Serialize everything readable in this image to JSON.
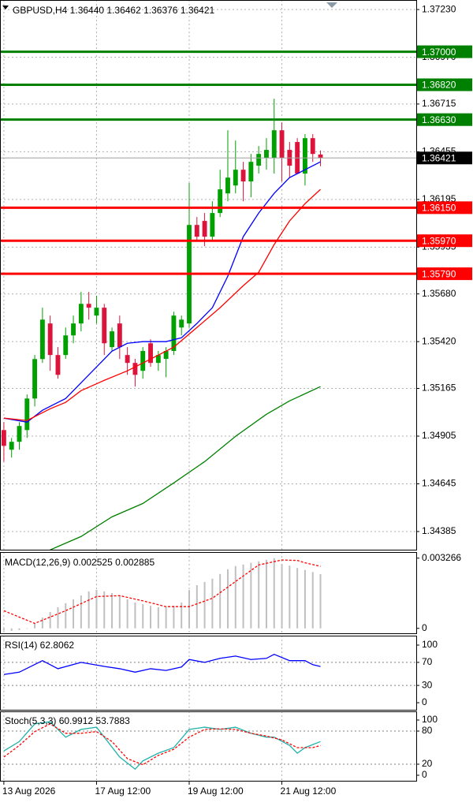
{
  "chart_data": [
    {
      "type": "candlestick",
      "title": "GBPUSD,H4  1.36440 1.36462 1.36376 1.36421",
      "x": [
        0,
        1,
        2,
        3,
        4,
        5,
        6,
        7,
        8,
        9,
        10,
        11,
        12,
        13,
        14,
        15,
        16,
        17,
        18,
        19,
        20,
        21,
        22,
        23,
        24,
        25,
        26,
        27,
        28,
        29,
        30,
        31,
        32,
        33,
        34,
        35,
        36,
        37,
        38,
        39,
        40,
        41
      ],
      "open": [
        1.34938,
        1.34831,
        1.34874,
        1.34938,
        1.3511,
        1.35325,
        1.35519,
        1.35347,
        1.35347,
        1.35454,
        1.35519,
        1.35626,
        1.35562,
        1.35605,
        1.3539,
        1.35519,
        1.35347,
        1.35304,
        1.35261,
        1.35411,
        1.35304,
        1.35326,
        1.35369,
        1.35497,
        1.35519,
        1.36056,
        1.36078,
        1.35992,
        1.36121,
        1.36228,
        1.36271,
        1.36357,
        1.36293,
        1.36379,
        1.36422,
        1.36422,
        1.36572,
        1.36465,
        1.36508,
        1.36336,
        1.36529,
        1.3644
      ],
      "high": [
        1.34981,
        1.34895,
        1.34981,
        1.35132,
        1.35347,
        1.35605,
        1.35562,
        1.3539,
        1.35497,
        1.35562,
        1.35691,
        1.35691,
        1.3567,
        1.35626,
        1.35497,
        1.35562,
        1.3539,
        1.35326,
        1.3539,
        1.35433,
        1.35369,
        1.3539,
        1.35583,
        1.35562,
        1.36284,
        1.36099,
        1.36121,
        1.36185,
        1.36357,
        1.36572,
        1.36516,
        1.364,
        1.36443,
        1.36486,
        1.36529,
        1.36744,
        1.36615,
        1.36508,
        1.36529,
        1.36551,
        1.36551,
        1.36462
      ],
      "low": [
        1.34766,
        1.34788,
        1.34831,
        1.34895,
        1.35067,
        1.35304,
        1.35261,
        1.35218,
        1.35326,
        1.35411,
        1.35476,
        1.3554,
        1.35519,
        1.35347,
        1.35369,
        1.35325,
        1.35239,
        1.35175,
        1.35218,
        1.35283,
        1.35261,
        1.35226,
        1.35347,
        1.35454,
        1.35497,
        1.3597,
        1.3594,
        1.3597,
        1.36099,
        1.36185,
        1.36228,
        1.36185,
        1.36207,
        1.36336,
        1.36357,
        1.36336,
        1.36293,
        1.36314,
        1.36336,
        1.36271,
        1.364,
        1.36376
      ],
      "close": [
        1.34852,
        1.34874,
        1.3496,
        1.3511,
        1.35325,
        1.3554,
        1.35347,
        1.35239,
        1.35454,
        1.35519,
        1.35626,
        1.35605,
        1.35605,
        1.35411,
        1.35476,
        1.3539,
        1.35304,
        1.35239,
        1.35369,
        1.35304,
        1.35347,
        1.35369,
        1.35562,
        1.3554,
        1.36056,
        1.35992,
        1.35992,
        1.36121,
        1.3625,
        1.36314,
        1.36357,
        1.36293,
        1.364,
        1.36443,
        1.36465,
        1.36572,
        1.36422,
        1.36379,
        1.36336,
        1.36529,
        1.36443,
        1.36421
      ],
      "up_color": "#00a000",
      "down_color": "#dc143c",
      "xlim": [
        -0.5,
        53.4
      ],
      "xticks": [
        {
          "value": 0,
          "label": "13 Aug 2026"
        },
        {
          "value": 12,
          "label": "17 Aug 12:00"
        },
        {
          "value": 24,
          "label": "19 Aug 12:00"
        },
        {
          "value": 36,
          "label": "21 Aug 12:00"
        }
      ],
      "ylim": [
        1.34286,
        1.37282
      ],
      "yticks": [
        {
          "value": 1.3723,
          "label": "1.37230"
        },
        {
          "value": 1.3697,
          "label": "1.36970"
        },
        {
          "value": 1.36715,
          "label": "1.36715"
        },
        {
          "value": 1.36455,
          "label": "1.36455"
        },
        {
          "value": 1.36195,
          "label": "1.36195"
        },
        {
          "value": 1.35935,
          "label": "1.35935"
        },
        {
          "value": 1.3568,
          "label": "1.35680"
        },
        {
          "value": 1.3542,
          "label": "1.35420"
        },
        {
          "value": 1.35165,
          "label": "1.35165"
        },
        {
          "value": 1.34905,
          "label": "1.34905"
        },
        {
          "value": 1.34645,
          "label": "1.34645"
        },
        {
          "value": 1.34385,
          "label": "1.34385"
        }
      ],
      "grid": true,
      "series": [
        {
          "color": "#0000ff",
          "x": [
            0,
            3,
            5,
            8,
            10,
            12,
            14,
            16,
            18,
            21,
            23,
            25,
            27,
            29,
            31,
            33,
            35,
            37,
            39,
            41
          ],
          "values": [
            1.35003,
            1.34981,
            1.35046,
            1.3511,
            1.35196,
            1.35282,
            1.35368,
            1.35411,
            1.3542,
            1.3542,
            1.35441,
            1.35519,
            1.35605,
            1.35777,
            1.35992,
            1.36121,
            1.36228,
            1.36314,
            1.36357,
            1.364
          ]
        },
        {
          "color": "#ff0000",
          "x": [
            0,
            3,
            6,
            8,
            10,
            13,
            16,
            19,
            22,
            25,
            28,
            31,
            33,
            35,
            37,
            39,
            41
          ],
          "values": [
            1.35003,
            1.3499,
            1.35054,
            1.35089,
            1.35153,
            1.35209,
            1.35261,
            1.35325,
            1.3539,
            1.35497,
            1.35605,
            1.35725,
            1.35798,
            1.35949,
            1.36078,
            1.36172,
            1.3625
          ]
        },
        {
          "color": "#008000",
          "x": [
            6,
            10,
            14,
            18,
            22,
            26,
            30,
            34,
            37,
            41
          ],
          "values": [
            1.34285,
            1.34358,
            1.34465,
            1.34538,
            1.3465,
            1.34766,
            1.34904,
            1.35024,
            1.35097,
            1.35175
          ]
        }
      ],
      "levels": [
        {
          "value": 1.37,
          "label": "1.37000",
          "color": "#008000"
        },
        {
          "value": 1.3682,
          "label": "1.36820",
          "color": "#008000"
        },
        {
          "value": 1.3663,
          "label": "1.36630",
          "color": "#008000"
        },
        {
          "value": 1.3615,
          "label": "1.36150",
          "color": "#ff0000"
        },
        {
          "value": 1.3597,
          "label": "1.35970",
          "color": "#ff0000"
        },
        {
          "value": 1.3579,
          "label": "1.35790",
          "color": "#ff0000"
        }
      ],
      "last_price": {
        "value": 1.36421,
        "label": "1.36421"
      }
    },
    {
      "type": "macd",
      "title": "MACD(12,26,9) 0.002525 0.002885",
      "x": [
        0,
        1,
        2,
        3,
        4,
        5,
        6,
        7,
        8,
        9,
        10,
        11,
        12,
        13,
        14,
        15,
        16,
        17,
        18,
        19,
        20,
        21,
        22,
        23,
        24,
        25,
        26,
        27,
        28,
        29,
        30,
        31,
        32,
        33,
        34,
        35,
        36,
        37,
        38,
        39,
        40,
        41
      ],
      "values": [
        -0.0001,
        -0.00012,
        -8e-05,
        -2e-05,
        0.00024,
        0.0005,
        0.00076,
        0.00098,
        0.00117,
        0.00135,
        0.00153,
        0.00172,
        0.00179,
        0.00172,
        0.00164,
        0.00153,
        0.00135,
        0.0012,
        0.00113,
        0.00105,
        0.00098,
        0.00098,
        0.00105,
        0.0012,
        0.00179,
        0.00201,
        0.00216,
        0.00231,
        0.00253,
        0.00275,
        0.0029,
        0.00297,
        0.00305,
        0.00312,
        0.00319,
        0.00327,
        0.003,
        0.00292,
        0.00281,
        0.00272,
        0.00262,
        0.002525
      ],
      "color": "#c0c0c0",
      "signal": {
        "color": "#ff0000",
        "dashed": true,
        "x": [
          0,
          4,
          8,
          12,
          15,
          18,
          21,
          24,
          27,
          30,
          33,
          36,
          38,
          39,
          41
        ],
        "values": [
          0.00082,
          0.00023,
          0.00082,
          0.00148,
          0.00152,
          0.00128,
          0.00101,
          0.00101,
          0.0014,
          0.00218,
          0.00295,
          0.00318,
          0.00316,
          0.00305,
          0.002885
        ]
      },
      "ylim": [
        -0.00023,
        0.00355
      ],
      "yticks": [
        0.003266,
        0
      ]
    },
    {
      "type": "line",
      "title": "RSI(14) 62.8062",
      "series": [
        {
          "color": "#0000ff",
          "x": [
            0,
            2,
            5,
            7,
            10,
            13,
            15,
            17,
            19,
            21,
            23,
            24,
            26,
            28,
            30,
            32,
            34,
            35,
            37,
            39,
            40,
            41
          ],
          "values": [
            49,
            53,
            73,
            59,
            70,
            63,
            59,
            53,
            59,
            56,
            62,
            75,
            70,
            77,
            81,
            75,
            77,
            84,
            73,
            73,
            66,
            62.8062
          ]
        }
      ],
      "levels": [
        70,
        30
      ],
      "ylim": [
        -12.3,
        116.4
      ],
      "yticks": [
        100,
        70,
        30,
        0
      ]
    },
    {
      "type": "line",
      "title": "Stoch(5,3,3) 60.9912 53.7883",
      "series": [
        {
          "color": "#20b2aa",
          "x": [
            0,
            2,
            4,
            6,
            8,
            10,
            12,
            13,
            15,
            17,
            18,
            20,
            22,
            24,
            26,
            28,
            30,
            32,
            34,
            35,
            37,
            38,
            39,
            41
          ],
          "values": [
            44,
            61,
            93,
            97,
            69,
            83,
            87,
            69,
            33,
            11,
            26,
            40,
            50,
            83,
            87,
            83,
            87,
            76,
            69,
            69,
            54,
            40,
            50,
            60.9912
          ]
        },
        {
          "color": "#ff0000",
          "dashed": true,
          "x": [
            0,
            2,
            4,
            6,
            8,
            10,
            12,
            14,
            16,
            18,
            20,
            22,
            24,
            26,
            28,
            30,
            32,
            34,
            36,
            38,
            40,
            41
          ],
          "values": [
            33,
            54,
            79,
            93,
            76,
            76,
            79,
            61,
            30,
            19,
            36,
            47,
            69,
            83,
            84,
            83,
            76,
            71,
            64,
            50,
            50,
            53.7883
          ]
        }
      ],
      "levels": [
        80,
        20
      ],
      "ylim": [
        -10,
        115.7
      ],
      "yticks": [
        100,
        80,
        20,
        0
      ]
    }
  ]
}
